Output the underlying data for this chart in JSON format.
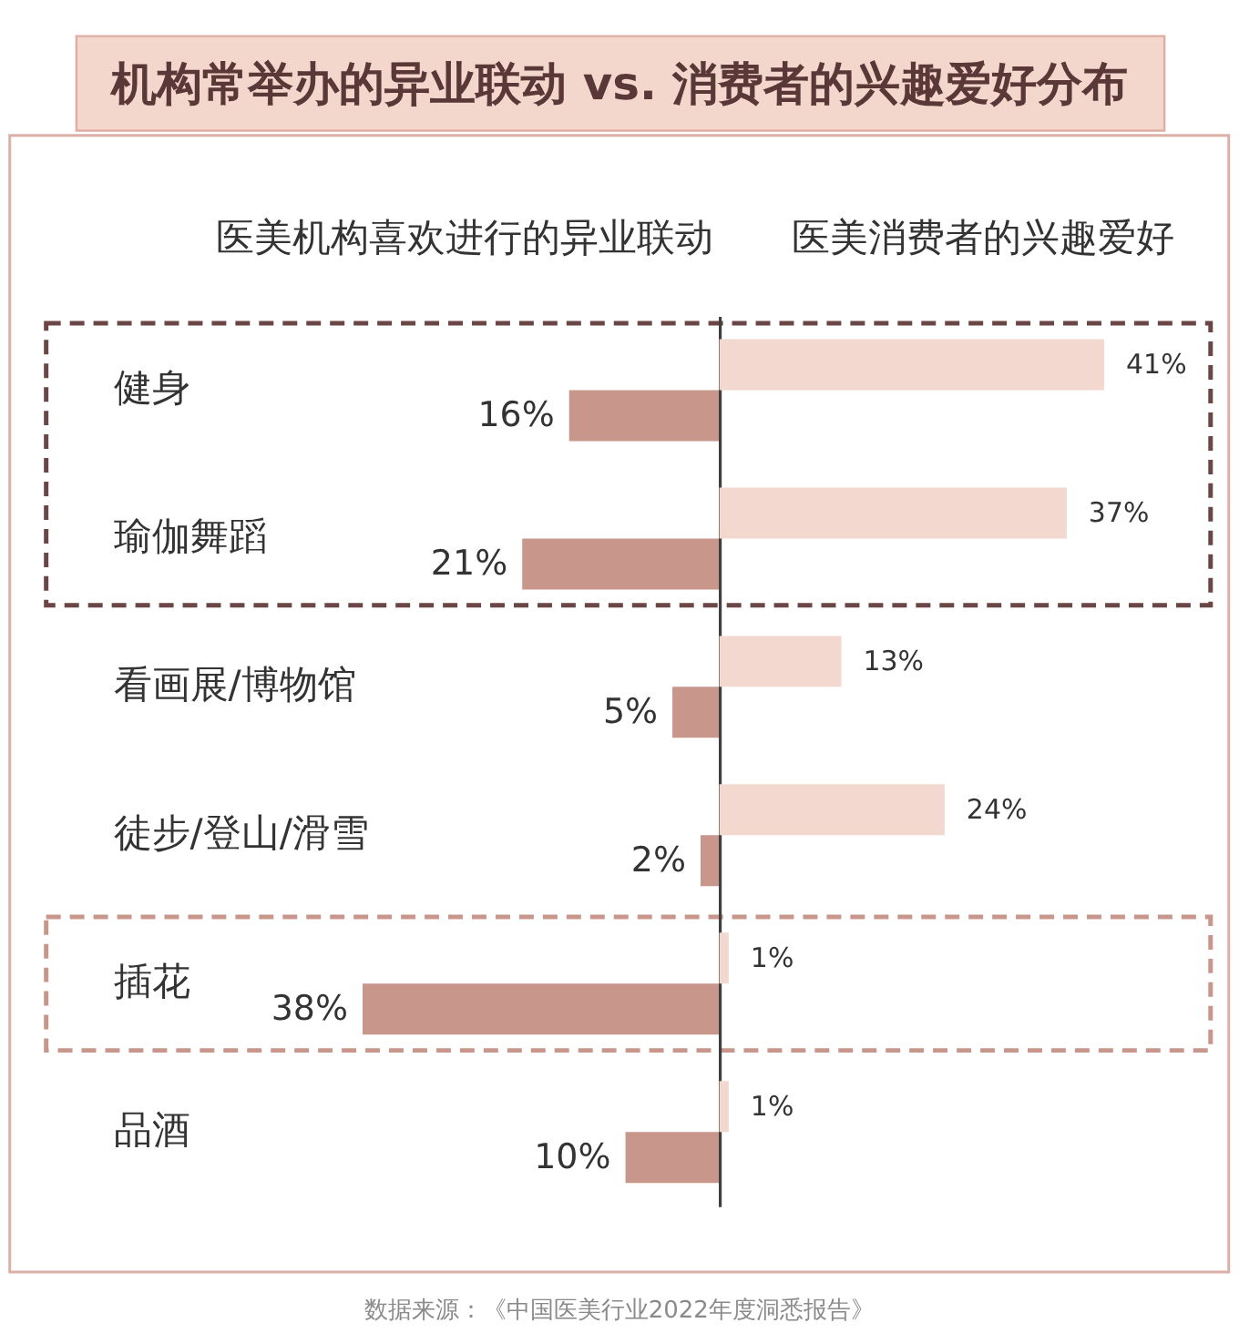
{
  "chart_data": [
    {
      "type": "bar",
      "orientation": "horizontal",
      "title": "机构常举办的异业联动 vs. 消费者的兴趣爱好分布",
      "categories": [
        "健身",
        "瑜伽舞蹈",
        "看画展/博物馆",
        "徒步/登山/滑雪",
        "插花",
        "品酒"
      ],
      "series": [
        {
          "name": "医美机构喜欢进行的异业联动",
          "color": "#c9968b",
          "values": [
            16,
            21,
            5,
            2,
            38,
            10
          ],
          "value_labels": [
            "16%",
            "21%",
            "5%",
            "2%",
            "38%",
            "10%"
          ]
        }
      ],
      "annotations": [
        "数据来源：《中国医美行业2022年度洞悉报告》"
      ],
      "tick_labels": "y"
    },
    {
      "type": "bar",
      "orientation": "horizontal",
      "categories": [
        "健身",
        "瑜伽舞蹈",
        "看画展/博物馆",
        "徒步/登山/滑雪",
        "插花",
        "品酒"
      ],
      "series": [
        {
          "name": "医美消费者的兴趣爱好",
          "color": "#f2d8cf",
          "values": [
            41,
            37,
            13,
            24,
            1,
            1
          ],
          "value_labels": [
            "41%",
            "37%",
            "13%",
            "24%",
            "1%",
            "1%"
          ]
        }
      ],
      "tick_labels": false
    }
  ]
}
